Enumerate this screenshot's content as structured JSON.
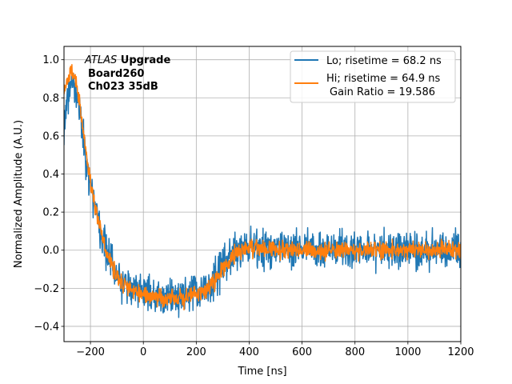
{
  "chart_data": {
    "type": "line",
    "title": "",
    "xlabel": "Time [ns]",
    "ylabel": "Normalized Amplitude (A.U.)",
    "xlim": [
      -300,
      1200
    ],
    "ylim": [
      -0.48,
      1.07
    ],
    "xticks": [
      -200,
      0,
      200,
      400,
      600,
      800,
      1000,
      1200
    ],
    "xtick_labels": [
      "−200",
      "0",
      "200",
      "400",
      "600",
      "800",
      "1000",
      "1200"
    ],
    "yticks": [
      -0.4,
      -0.2,
      0.0,
      0.2,
      0.4,
      0.6,
      0.8,
      1.0
    ],
    "ytick_labels": [
      "−0.4",
      "−0.2",
      "0.0",
      "0.2",
      "0.4",
      "0.6",
      "0.8",
      "1.0"
    ],
    "grid": true,
    "legend_position": "top-right",
    "annotation": {
      "line1_italic": "ATLAS",
      "line1_bold": " Upgrade",
      "line2": "Board260",
      "line3": "Ch023 35dB"
    },
    "series": [
      {
        "name": "Lo; risetime = 68.2 ns",
        "color": "#1f77b4",
        "noise": 0.05,
        "shape_x": [
          -300,
          -290,
          -280,
          -270,
          -260,
          -250,
          -240,
          -230,
          -220,
          -210,
          -200,
          -190,
          -180,
          -170,
          -160,
          -150,
          -140,
          -130,
          -120,
          -110,
          -100,
          -80,
          -60,
          -40,
          -20,
          0,
          20,
          40,
          60,
          80,
          100,
          120,
          140,
          160,
          180,
          200,
          220,
          240,
          260,
          280,
          300,
          320,
          340,
          360,
          380,
          400,
          450,
          500,
          600,
          700,
          800,
          900,
          1000,
          1100,
          1200
        ],
        "shape_y": [
          0.65,
          0.78,
          0.87,
          0.89,
          0.85,
          0.8,
          0.72,
          0.62,
          0.52,
          0.42,
          0.35,
          0.28,
          0.21,
          0.15,
          0.09,
          0.04,
          0.0,
          -0.04,
          -0.07,
          -0.1,
          -0.13,
          -0.16,
          -0.18,
          -0.2,
          -0.21,
          -0.22,
          -0.23,
          -0.24,
          -0.25,
          -0.25,
          -0.25,
          -0.25,
          -0.24,
          -0.24,
          -0.23,
          -0.22,
          -0.21,
          -0.2,
          -0.17,
          -0.13,
          -0.09,
          -0.05,
          -0.02,
          0.0,
          0.01,
          0.02,
          0.02,
          0.01,
          0.01,
          0.01,
          0.01,
          0.0,
          0.0,
          0.01,
          0.01
        ]
      },
      {
        "name": "Hi; risetime = 64.9 ns",
        "name_line2": "Gain Ratio = 19.586",
        "color": "#ff7f0e",
        "noise": 0.022,
        "shape_x": [
          -300,
          -290,
          -280,
          -270,
          -260,
          -250,
          -240,
          -230,
          -220,
          -210,
          -200,
          -190,
          -180,
          -170,
          -160,
          -150,
          -140,
          -130,
          -120,
          -110,
          -100,
          -80,
          -60,
          -40,
          -20,
          0,
          20,
          40,
          60,
          80,
          100,
          120,
          140,
          160,
          180,
          200,
          220,
          240,
          260,
          280,
          300,
          320,
          340,
          360,
          380,
          400,
          450,
          500,
          600,
          700,
          800,
          900,
          1000,
          1100,
          1200
        ],
        "shape_y": [
          0.82,
          0.88,
          0.93,
          0.95,
          0.92,
          0.85,
          0.76,
          0.66,
          0.55,
          0.45,
          0.36,
          0.28,
          0.21,
          0.15,
          0.09,
          0.04,
          -0.01,
          -0.05,
          -0.08,
          -0.11,
          -0.14,
          -0.17,
          -0.19,
          -0.21,
          -0.22,
          -0.23,
          -0.24,
          -0.25,
          -0.25,
          -0.26,
          -0.26,
          -0.26,
          -0.25,
          -0.25,
          -0.24,
          -0.23,
          -0.22,
          -0.21,
          -0.18,
          -0.14,
          -0.1,
          -0.06,
          -0.03,
          -0.01,
          0.0,
          0.01,
          0.01,
          0.0,
          0.0,
          0.0,
          0.0,
          0.0,
          0.0,
          0.0,
          0.0
        ]
      }
    ]
  }
}
